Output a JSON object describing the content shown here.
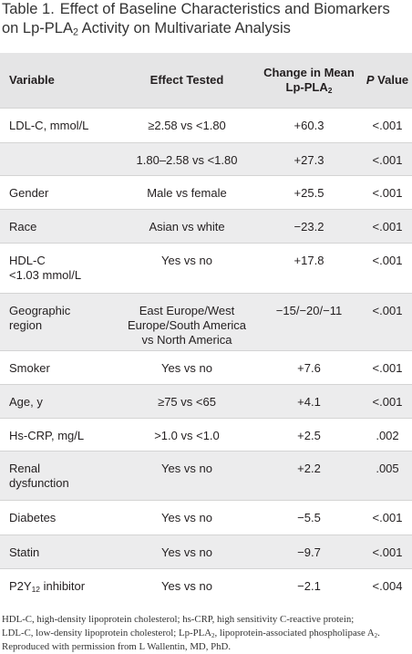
{
  "title": {
    "label": "Table 1.",
    "runs": [
      "Effect of Baseline Characteristics and Biomarkers",
      "on Lp-PLA",
      "2",
      " Activity on Multivariate Analysis"
    ]
  },
  "table": {
    "header": {
      "variable": "Variable",
      "effect": "Effect Tested",
      "change": [
        "Change in Mean",
        "Lp-PLA",
        "2"
      ],
      "p": [
        "P",
        " Value"
      ]
    },
    "rows": [
      [
        "LDL-C, mmol/L",
        "≥2.58 vs <1.80",
        "+60.3",
        "<.001"
      ],
      [
        null,
        "1.80–2.58 vs <1.80",
        "+27.3",
        "<.001"
      ],
      [
        "Gender",
        "Male vs female",
        "+25.5",
        "<.001"
      ],
      [
        "Race",
        "Asian vs white",
        "−23.2",
        "<.001"
      ],
      [
        {
          "lines": [
            "HDL-C",
            "<1.03 mmol/L"
          ]
        },
        "Yes vs no",
        "+17.8",
        "<.001"
      ],
      [
        {
          "lines": [
            "Geographic",
            "region"
          ]
        },
        {
          "lines": [
            "East Europe/West",
            "Europe/South America",
            "vs North America"
          ]
        },
        "−15/−20/−11",
        "<.001"
      ],
      [
        "Smoker",
        "Yes vs no",
        "+7.6",
        "<.001"
      ],
      [
        "Age, y",
        "≥75 vs <65",
        "+4.1",
        "<.001"
      ],
      [
        "Hs-CRP, mg/L",
        ">1.0 vs <1.0",
        "+2.5",
        ".002"
      ],
      [
        {
          "lines": [
            "Renal",
            "dysfunction"
          ]
        },
        "Yes vs no",
        "+2.2",
        ".005"
      ],
      [
        "Diabetes",
        "Yes vs no",
        "−5.5",
        "<.001"
      ],
      [
        "Statin",
        "Yes vs no",
        "−9.7",
        "<.001"
      ],
      [
        {
          "runs": [
            "P2Y",
            "12",
            " inhibitor"
          ]
        },
        "Yes vs no",
        "−2.1",
        "<.004"
      ]
    ]
  },
  "footnote": {
    "line1": "HDL-C, high-density lipoprotein cholesterol; hs-CRP, high sensitivity C-reactive protein;",
    "line2": [
      "LDL-C, low-density lipoprotein cholesterol; Lp-PLA",
      "2",
      ", lipoprotein-associated phospholipase A",
      "2",
      "."
    ],
    "line3": "Reproduced with permission from L Wallentin, MD, PhD."
  }
}
